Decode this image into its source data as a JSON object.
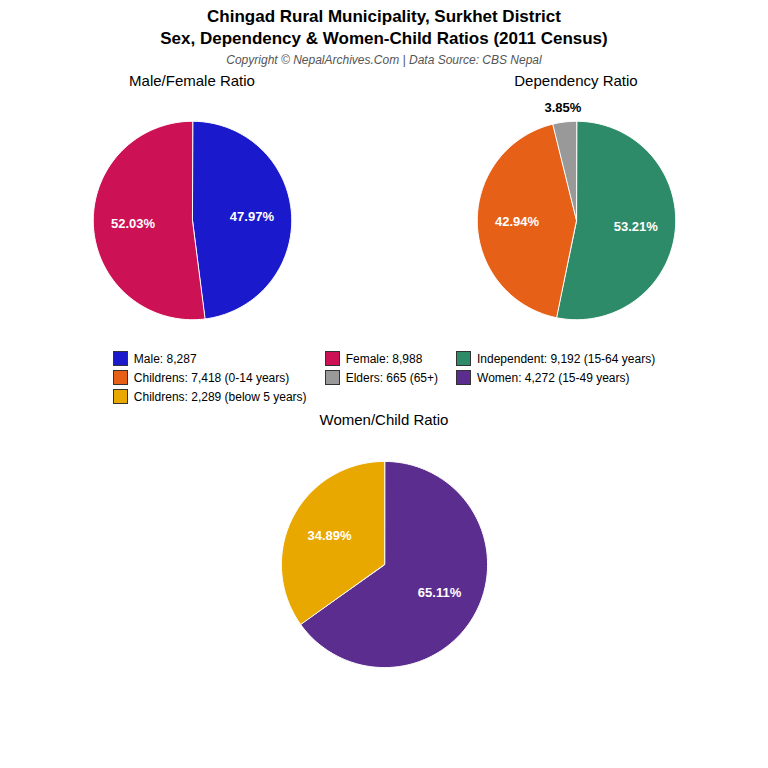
{
  "title": "Chingad Rural Municipality, Surkhet District\nSex, Dependency & Women-Child Ratios (2011 Census)",
  "subtitle": "Copyright © NepalArchives.Com | Data Source: CBS Nepal",
  "chart_data": [
    {
      "type": "pie",
      "title": "Male/Female Ratio",
      "categories": [
        "Male: 8,287",
        "Female: 8,988"
      ],
      "values": [
        47.97,
        52.03
      ],
      "value_labels": [
        "47.97%",
        "52.03%"
      ],
      "colors": [
        "#1a1acc",
        "#cc1155"
      ],
      "data_labels": true
    },
    {
      "type": "pie",
      "title": "Dependency Ratio",
      "categories": [
        "Independent: 9,192 (15-64 years)",
        "Childrens: 7,418 (0-14 years)",
        "Elders: 665 (65+)"
      ],
      "values": [
        53.21,
        42.94,
        3.85
      ],
      "value_labels": [
        "53.21%",
        "42.94%",
        "3.85%"
      ],
      "colors": [
        "#2e8b6a",
        "#e66018",
        "#999999"
      ],
      "data_labels": true
    },
    {
      "type": "pie",
      "title": "Women/Child Ratio",
      "categories": [
        "Women: 4,272 (15-49 years)",
        "Childrens: 2,289 (below 5 years)"
      ],
      "values": [
        65.11,
        34.89
      ],
      "value_labels": [
        "65.11%",
        "34.89%"
      ],
      "colors": [
        "#5b2d8e",
        "#e8a800"
      ],
      "data_labels": true
    }
  ]
}
